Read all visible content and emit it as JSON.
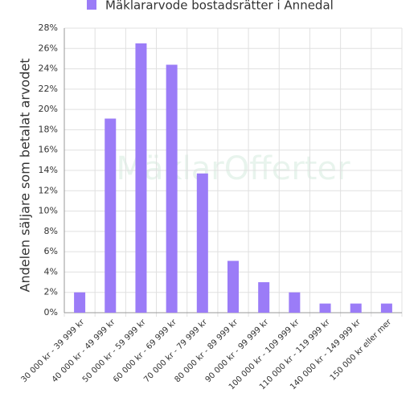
{
  "chart_data": {
    "type": "bar",
    "legend_label": "Mäklararvode bostadsrätter i Annedal",
    "ylabel": "Andelen säljare som betalat arvodet",
    "watermark": "MäklarOfferter",
    "color": "#9b7cf7",
    "categories": [
      "30 000 kr - 39 999 kr",
      "40 000 kr - 49 999 kr",
      "50 000 kr - 59 999 kr",
      "60 000 kr - 69 999 kr",
      "70 000 kr - 79 999 kr",
      "80 000 kr - 89 999 kr",
      "90 000 kr - 99 999 kr",
      "100 000 kr - 109 999 kr",
      "110 000 kr - 119 999 kr",
      "140 000 kr - 149 999 kr",
      "150 000 kr eller mer"
    ],
    "values": [
      2.0,
      19.1,
      26.5,
      24.4,
      13.7,
      5.1,
      3.0,
      2.0,
      0.9,
      0.9,
      0.9
    ],
    "ylim": [
      0,
      28
    ],
    "yticks": [
      {
        "value": 0,
        "label": "0%"
      },
      {
        "value": 2,
        "label": "2%"
      },
      {
        "value": 4,
        "label": "4%"
      },
      {
        "value": 6,
        "label": "6%"
      },
      {
        "value": 8,
        "label": "8%"
      },
      {
        "value": 10,
        "label": "10%"
      },
      {
        "value": 12,
        "label": "12%"
      },
      {
        "value": 14,
        "label": "14%"
      },
      {
        "value": 16,
        "label": "16%"
      },
      {
        "value": 18,
        "label": "18%"
      },
      {
        "value": 20,
        "label": "20%"
      },
      {
        "value": 22,
        "label": "22%"
      },
      {
        "value": 24,
        "label": "24%"
      },
      {
        "value": 26,
        "label": "26%"
      },
      {
        "value": 28,
        "label": "28%"
      }
    ],
    "grid": true
  }
}
